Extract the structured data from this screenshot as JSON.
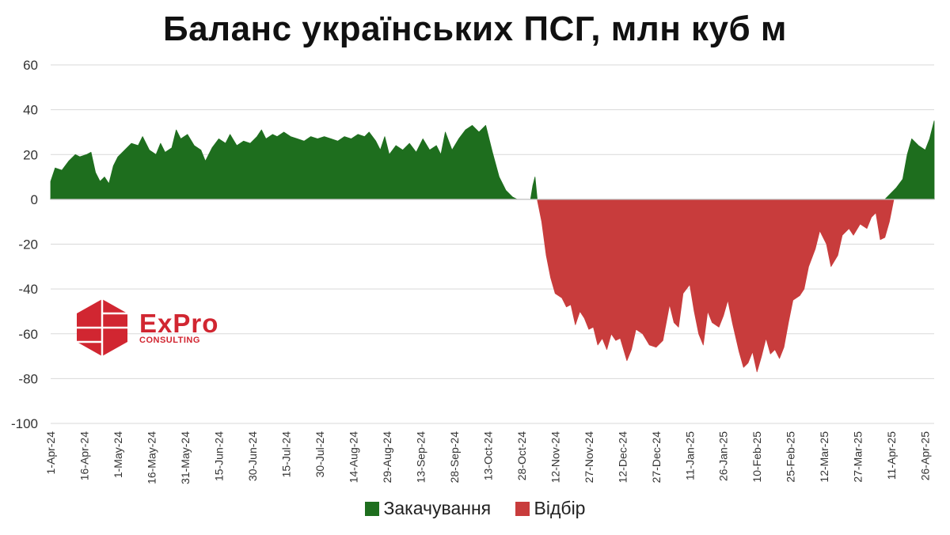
{
  "logo": {
    "name": "ExPro",
    "sub": "CONSULTING"
  },
  "chart_data": {
    "type": "area",
    "title": "Баланс українських ПСГ, млн куб м",
    "xlabel": "",
    "ylabel": "",
    "ylim": [
      -100,
      60
    ],
    "yticks": [
      60,
      40,
      20,
      0,
      -20,
      -40,
      -60,
      -80,
      -100
    ],
    "grid": true,
    "legend_position": "bottom",
    "x_range": [
      "2024-04-01",
      "2025-04-30"
    ],
    "x_tick_labels": [
      "1-Apr-24",
      "16-Apr-24",
      "1-May-24",
      "16-May-24",
      "31-May-24",
      "15-Jun-24",
      "30-Jun-24",
      "15-Jul-24",
      "30-Jul-24",
      "14-Aug-24",
      "29-Aug-24",
      "13-Sep-24",
      "28-Sep-24",
      "13-Oct-24",
      "28-Oct-24",
      "12-Nov-24",
      "27-Nov-24",
      "12-Dec-24",
      "27-Dec-24",
      "11-Jan-25",
      "26-Jan-25",
      "10-Feb-25",
      "25-Feb-25",
      "12-Mar-25",
      "27-Mar-25",
      "11-Apr-25",
      "26-Apr-25"
    ],
    "colors": {
      "injection": "#1e6e1e",
      "withdrawal": "#c83c3c"
    },
    "series": [
      {
        "name": "Закачування",
        "color": "#1e6e1e",
        "points": [
          [
            "2024-04-01",
            8
          ],
          [
            "2024-04-03",
            14
          ],
          [
            "2024-04-06",
            13
          ],
          [
            "2024-04-09",
            17
          ],
          [
            "2024-04-12",
            20
          ],
          [
            "2024-04-14",
            19
          ],
          [
            "2024-04-17",
            20
          ],
          [
            "2024-04-19",
            21
          ],
          [
            "2024-04-21",
            12
          ],
          [
            "2024-04-23",
            8
          ],
          [
            "2024-04-25",
            10
          ],
          [
            "2024-04-27",
            7
          ],
          [
            "2024-04-29",
            15
          ],
          [
            "2024-05-01",
            19
          ],
          [
            "2024-05-04",
            22
          ],
          [
            "2024-05-07",
            25
          ],
          [
            "2024-05-10",
            24
          ],
          [
            "2024-05-12",
            28
          ],
          [
            "2024-05-15",
            22
          ],
          [
            "2024-05-18",
            20
          ],
          [
            "2024-05-20",
            25
          ],
          [
            "2024-05-22",
            21
          ],
          [
            "2024-05-25",
            23
          ],
          [
            "2024-05-27",
            31
          ],
          [
            "2024-05-29",
            27
          ],
          [
            "2024-06-01",
            29
          ],
          [
            "2024-06-04",
            24
          ],
          [
            "2024-06-07",
            22
          ],
          [
            "2024-06-09",
            17
          ],
          [
            "2024-06-12",
            23
          ],
          [
            "2024-06-15",
            27
          ],
          [
            "2024-06-18",
            25
          ],
          [
            "2024-06-20",
            29
          ],
          [
            "2024-06-23",
            24
          ],
          [
            "2024-06-26",
            26
          ],
          [
            "2024-06-29",
            25
          ],
          [
            "2024-07-02",
            28
          ],
          [
            "2024-07-04",
            31
          ],
          [
            "2024-07-06",
            27
          ],
          [
            "2024-07-09",
            29
          ],
          [
            "2024-07-11",
            28
          ],
          [
            "2024-07-14",
            30
          ],
          [
            "2024-07-17",
            28
          ],
          [
            "2024-07-20",
            27
          ],
          [
            "2024-07-23",
            26
          ],
          [
            "2024-07-26",
            28
          ],
          [
            "2024-07-29",
            27
          ],
          [
            "2024-08-01",
            28
          ],
          [
            "2024-08-04",
            27
          ],
          [
            "2024-08-07",
            26
          ],
          [
            "2024-08-10",
            28
          ],
          [
            "2024-08-13",
            27
          ],
          [
            "2024-08-16",
            29
          ],
          [
            "2024-08-19",
            28
          ],
          [
            "2024-08-21",
            30
          ],
          [
            "2024-08-24",
            26
          ],
          [
            "2024-08-26",
            22
          ],
          [
            "2024-08-28",
            28
          ],
          [
            "2024-08-30",
            20
          ],
          [
            "2024-09-02",
            24
          ],
          [
            "2024-09-05",
            22
          ],
          [
            "2024-09-08",
            25
          ],
          [
            "2024-09-11",
            21
          ],
          [
            "2024-09-14",
            27
          ],
          [
            "2024-09-17",
            22
          ],
          [
            "2024-09-20",
            24
          ],
          [
            "2024-09-22",
            20
          ],
          [
            "2024-09-24",
            30
          ],
          [
            "2024-09-27",
            22
          ],
          [
            "2024-09-30",
            27
          ],
          [
            "2024-10-03",
            31
          ],
          [
            "2024-10-06",
            33
          ],
          [
            "2024-10-09",
            30
          ],
          [
            "2024-10-12",
            33
          ],
          [
            "2024-10-15",
            21
          ],
          [
            "2024-10-18",
            10
          ],
          [
            "2024-10-21",
            4
          ],
          [
            "2024-10-24",
            1
          ],
          [
            "2024-10-26",
            0
          ],
          [
            "2024-11-01",
            0
          ],
          [
            "2024-11-02",
            6
          ],
          [
            "2024-11-03",
            10
          ],
          [
            "2024-11-04",
            0
          ],
          [
            "2025-04-08",
            0
          ],
          [
            "2025-04-10",
            2
          ],
          [
            "2025-04-13",
            5
          ],
          [
            "2025-04-16",
            9
          ],
          [
            "2025-04-18",
            20
          ],
          [
            "2025-04-20",
            27
          ],
          [
            "2025-04-23",
            24
          ],
          [
            "2025-04-26",
            22
          ],
          [
            "2025-04-28",
            27
          ],
          [
            "2025-04-30",
            35
          ]
        ]
      },
      {
        "name": "Відбір",
        "color": "#c83c3c",
        "points": [
          [
            "2024-11-04",
            0
          ],
          [
            "2024-11-06",
            -10
          ],
          [
            "2024-11-08",
            -25
          ],
          [
            "2024-11-10",
            -35
          ],
          [
            "2024-11-12",
            -42
          ],
          [
            "2024-11-15",
            -44
          ],
          [
            "2024-11-17",
            -48
          ],
          [
            "2024-11-19",
            -47
          ],
          [
            "2024-11-21",
            -56
          ],
          [
            "2024-11-23",
            -50
          ],
          [
            "2024-11-25",
            -53
          ],
          [
            "2024-11-27",
            -58
          ],
          [
            "2024-11-29",
            -57
          ],
          [
            "2024-12-01",
            -65
          ],
          [
            "2024-12-03",
            -62
          ],
          [
            "2024-12-05",
            -67
          ],
          [
            "2024-12-07",
            -60
          ],
          [
            "2024-12-09",
            -63
          ],
          [
            "2024-12-11",
            -62
          ],
          [
            "2024-12-14",
            -72
          ],
          [
            "2024-12-16",
            -67
          ],
          [
            "2024-12-18",
            -58
          ],
          [
            "2024-12-21",
            -60
          ],
          [
            "2024-12-24",
            -65
          ],
          [
            "2024-12-27",
            -66
          ],
          [
            "2024-12-30",
            -63
          ],
          [
            "2025-01-02",
            -47
          ],
          [
            "2025-01-04",
            -55
          ],
          [
            "2025-01-06",
            -57
          ],
          [
            "2025-01-08",
            -42
          ],
          [
            "2025-01-11",
            -38
          ],
          [
            "2025-01-13",
            -50
          ],
          [
            "2025-01-15",
            -60
          ],
          [
            "2025-01-17",
            -65
          ],
          [
            "2025-01-19",
            -50
          ],
          [
            "2025-01-21",
            -55
          ],
          [
            "2025-01-24",
            -57
          ],
          [
            "2025-01-26",
            -52
          ],
          [
            "2025-01-28",
            -45
          ],
          [
            "2025-01-30",
            -55
          ],
          [
            "2025-02-02",
            -68
          ],
          [
            "2025-02-04",
            -75
          ],
          [
            "2025-02-06",
            -73
          ],
          [
            "2025-02-08",
            -68
          ],
          [
            "2025-02-10",
            -77
          ],
          [
            "2025-02-12",
            -70
          ],
          [
            "2025-02-14",
            -62
          ],
          [
            "2025-02-16",
            -69
          ],
          [
            "2025-02-18",
            -67
          ],
          [
            "2025-02-20",
            -71
          ],
          [
            "2025-02-22",
            -66
          ],
          [
            "2025-02-24",
            -55
          ],
          [
            "2025-02-26",
            -45
          ],
          [
            "2025-03-01",
            -43
          ],
          [
            "2025-03-03",
            -40
          ],
          [
            "2025-03-05",
            -30
          ],
          [
            "2025-03-08",
            -22
          ],
          [
            "2025-03-10",
            -14
          ],
          [
            "2025-03-13",
            -20
          ],
          [
            "2025-03-15",
            -30
          ],
          [
            "2025-03-18",
            -25
          ],
          [
            "2025-03-20",
            -16
          ],
          [
            "2025-03-23",
            -13
          ],
          [
            "2025-03-25",
            -16
          ],
          [
            "2025-03-28",
            -11
          ],
          [
            "2025-03-31",
            -13
          ],
          [
            "2025-04-02",
            -8
          ],
          [
            "2025-04-04",
            -6
          ],
          [
            "2025-04-06",
            -18
          ],
          [
            "2025-04-08",
            -17
          ],
          [
            "2025-04-10",
            -10
          ],
          [
            "2025-04-12",
            0
          ]
        ]
      }
    ]
  }
}
